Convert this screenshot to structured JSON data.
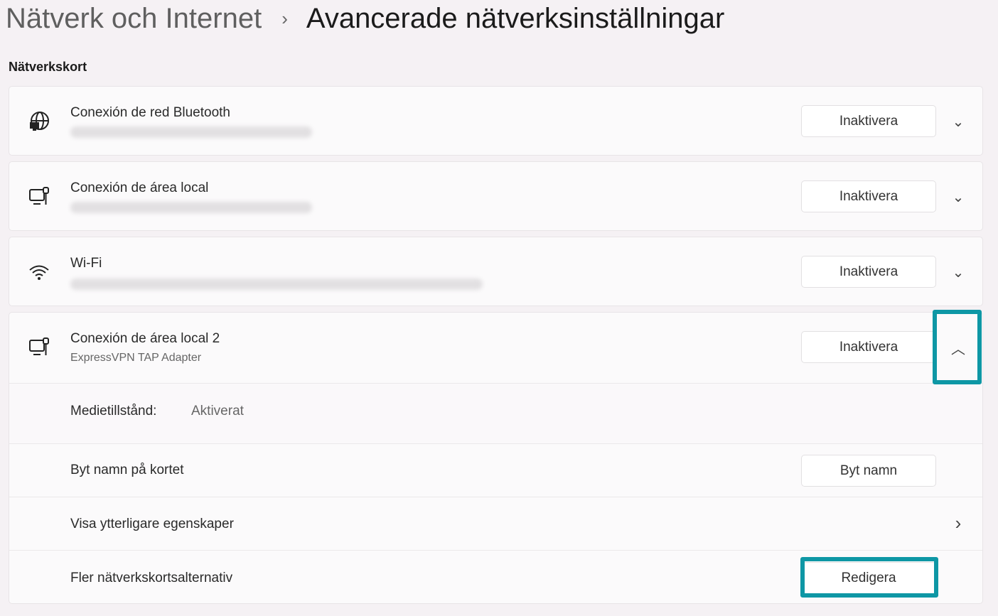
{
  "breadcrumb": {
    "parent": "Nätverk och Internet",
    "separator": "›",
    "current": "Avancerade nätverksinställningar"
  },
  "section_title": "Nätverkskort",
  "adapters": [
    {
      "name": "Conexión de red Bluetooth",
      "description": "",
      "icon": "globe-monitor-icon",
      "button": "Inaktivera",
      "expanded": false
    },
    {
      "name": "Conexión de área local",
      "description": "",
      "icon": "ethernet-monitor-icon",
      "button": "Inaktivera",
      "expanded": false
    },
    {
      "name": "Wi-Fi",
      "description": "",
      "icon": "wifi-icon",
      "button": "Inaktivera",
      "expanded": false
    },
    {
      "name": "Conexión de área local 2",
      "description": "ExpressVPN TAP Adapter",
      "icon": "ethernet-monitor-icon",
      "button": "Inaktivera",
      "expanded": true
    }
  ],
  "details": {
    "media_state_label": "Medietillstånd:",
    "media_state_value": "Aktiverat",
    "rename_label": "Byt namn på kortet",
    "rename_button": "Byt namn",
    "more_props_label": "Visa ytterligare egenskaper",
    "more_options_label": "Fler nätverkskortsalternativ",
    "edit_button": "Redigera"
  },
  "highlight_color": "#0e97a5"
}
